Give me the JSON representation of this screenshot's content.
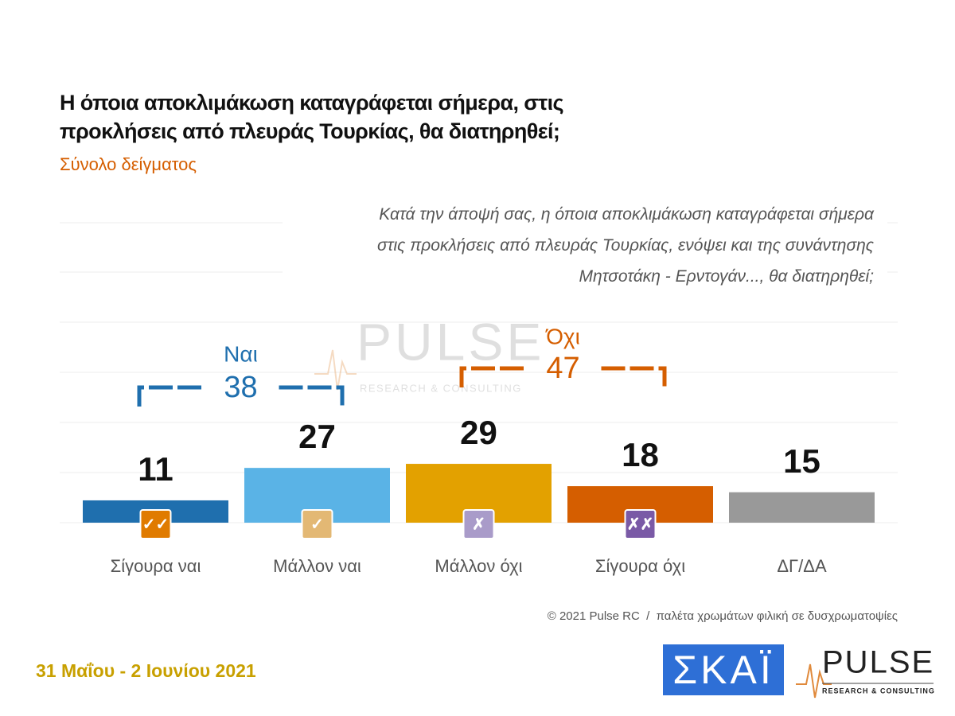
{
  "chart_data": {
    "type": "bar",
    "title": [
      "Η όποια αποκλιμάκωση καταγράφεται σήμερα, στις",
      "προκλήσεις από πλευράς Τουρκίας, θα διατηρηθεί;"
    ],
    "subtitle": "Σύνολο δείγματος",
    "note": [
      "Κατά την άποψή σας, η όποια αποκλιμάκωση καταγράφεται σήμερα",
      "στις προκλήσεις από πλευράς Τουρκίας, ενόψει και της συνάντησης",
      "Μητσοτάκη - Ερντογάν..., θα διατηρηθεί;"
    ],
    "categories": [
      "Σίγουρα ναι",
      "Μάλλον ναι",
      "Μάλλον όχι",
      "Σίγουρα όχι",
      "ΔΓ/ΔΑ"
    ],
    "values": [
      11,
      27,
      29,
      18,
      15
    ],
    "colors": [
      "#1f6fae",
      "#5ab3e6",
      "#e3a100",
      "#d55e00",
      "#999999"
    ],
    "ylim": [
      0,
      100
    ],
    "groups": [
      {
        "label": "Ναι",
        "value": 38,
        "color": "#1f6fae"
      },
      {
        "label": "Όχι",
        "value": 47,
        "color": "#d55e00"
      }
    ],
    "source": "© 2021 Pulse RC  /  παλέτα χρωμάτων φιλική σε δυσχρωματοψίες"
  },
  "footer": {
    "date": "31 Μαΐου - 2 Ιουνίου 2021",
    "logo_skai": "ΣΚΑΪ",
    "logo_pulse": "PULSE",
    "logo_pulse_sub": "RESEARCH & CONSULTING"
  }
}
